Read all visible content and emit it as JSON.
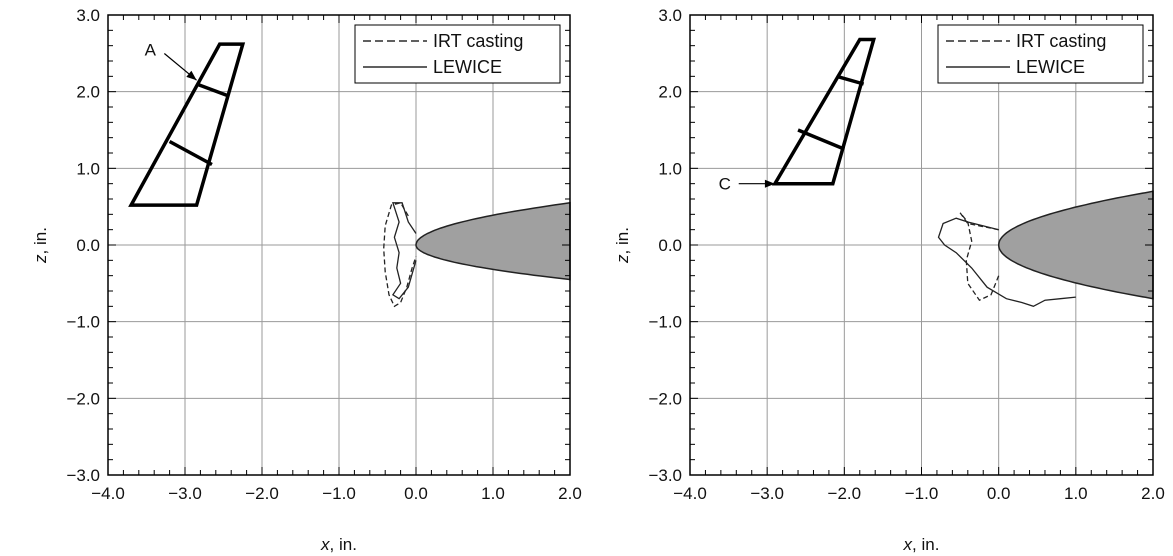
{
  "chart_data": [
    {
      "type": "line",
      "xlabel_var": "x",
      "xlabel_unit": ", in.",
      "ylabel_var": "z",
      "ylabel_unit": ", in.",
      "xlim": [
        -4.0,
        2.0
      ],
      "ylim": [
        -3.0,
        3.0
      ],
      "xticks": [
        "−4.0",
        "−3.0",
        "−2.0",
        "−1.0",
        "0.0",
        "1.0",
        "2.0"
      ],
      "yticks": [
        "3.0",
        "2.0",
        "1.0",
        "0.0",
        "−1.0",
        "−2.0",
        "−3.0"
      ],
      "grid": true,
      "legend_position": "top-right",
      "series": [
        {
          "name": "IRT casting",
          "style": "dashed",
          "x": [
            -0.1,
            -0.2,
            -0.32,
            -0.4,
            -0.42,
            -0.4,
            -0.35,
            -0.28,
            -0.2,
            -0.12,
            -0.05,
            0.0
          ],
          "y": [
            0.38,
            0.55,
            0.52,
            0.25,
            -0.05,
            -0.35,
            -0.65,
            -0.8,
            -0.75,
            -0.55,
            -0.3,
            -0.15
          ]
        },
        {
          "name": "LEWICE",
          "style": "solid",
          "x": [
            0.0,
            -0.1,
            -0.18,
            -0.3,
            -0.22,
            -0.28,
            -0.22,
            -0.25,
            -0.2,
            -0.3,
            -0.22,
            -0.1,
            0.0
          ],
          "y": [
            0.15,
            0.3,
            0.55,
            0.55,
            0.3,
            0.1,
            -0.1,
            -0.3,
            -0.5,
            -0.65,
            -0.7,
            -0.55,
            -0.2
          ]
        }
      ],
      "body": {
        "name": "airfoil leading edge",
        "fill": "#a0a0a0",
        "top_y_at_xmax": 0.55,
        "bottom_y_at_xmax": -0.45
      },
      "inset_outline": [
        [
          -3.7,
          0.52
        ],
        [
          -2.85,
          0.52
        ],
        [
          -2.25,
          2.62
        ],
        [
          -2.55,
          2.62
        ]
      ],
      "inset_cross_lines": [
        [
          [
            -3.2,
            1.35
          ],
          [
            -2.65,
            1.05
          ]
        ],
        [
          [
            -2.85,
            2.1
          ],
          [
            -2.45,
            1.95
          ]
        ]
      ],
      "annotation": {
        "text": "A",
        "x": -3.45,
        "y": 2.55,
        "arrow_to": [
          -2.85,
          2.15
        ]
      }
    },
    {
      "type": "line",
      "xlabel_var": "x",
      "xlabel_unit": ", in.",
      "ylabel_var": "z",
      "ylabel_unit": ", in.",
      "xlim": [
        -4.0,
        2.0
      ],
      "ylim": [
        -3.0,
        3.0
      ],
      "xticks": [
        "−4.0",
        "−3.0",
        "−2.0",
        "−1.0",
        "0.0",
        "1.0",
        "2.0"
      ],
      "yticks": [
        "3.0",
        "2.0",
        "1.0",
        "0.0",
        "−1.0",
        "−2.0",
        "−3.0"
      ],
      "grid": true,
      "legend_position": "top-right",
      "series": [
        {
          "name": "IRT casting",
          "style": "dashed",
          "x": [
            0.0,
            -0.4,
            -0.5,
            -0.4,
            -0.35,
            -0.42,
            -0.4,
            -0.25,
            -0.1,
            0.0
          ],
          "y": [
            0.2,
            0.28,
            0.42,
            0.3,
            0.05,
            -0.2,
            -0.5,
            -0.72,
            -0.65,
            -0.4
          ]
        },
        {
          "name": "LEWICE",
          "style": "solid",
          "x": [
            0.0,
            -0.4,
            -0.55,
            -0.72,
            -0.78,
            -0.7,
            -0.55,
            -0.35,
            -0.15,
            0.1,
            0.3,
            0.45,
            0.6,
            0.8,
            1.0
          ],
          "y": [
            0.2,
            0.3,
            0.35,
            0.28,
            0.1,
            0.0,
            -0.1,
            -0.3,
            -0.55,
            -0.7,
            -0.75,
            -0.8,
            -0.72,
            -0.7,
            -0.68
          ]
        }
      ],
      "body": {
        "name": "airfoil leading edge",
        "fill": "#a0a0a0",
        "top_y_at_xmax": 0.7,
        "bottom_y_at_xmax": -0.7
      },
      "inset_outline": [
        [
          -2.9,
          0.8
        ],
        [
          -2.15,
          0.8
        ],
        [
          -1.62,
          2.68
        ],
        [
          -1.8,
          2.68
        ]
      ],
      "inset_cross_lines": [
        [
          [
            -2.6,
            1.5
          ],
          [
            -2.0,
            1.25
          ]
        ],
        [
          [
            -2.1,
            2.2
          ],
          [
            -1.75,
            2.1
          ]
        ]
      ],
      "annotation": {
        "text": "C",
        "x": -3.55,
        "y": 0.8,
        "arrow_to": [
          -2.9,
          0.8
        ]
      }
    }
  ]
}
